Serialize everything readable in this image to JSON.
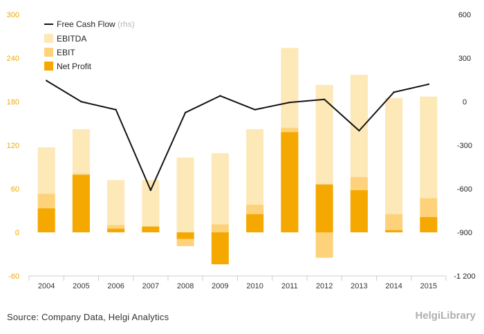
{
  "chart_data": {
    "type": "bar",
    "categories": [
      "2004",
      "2005",
      "2006",
      "2007",
      "2008",
      "2009",
      "2010",
      "2011",
      "2012",
      "2013",
      "2014",
      "2015"
    ],
    "series": [
      {
        "name": "EBITDA",
        "type": "bar",
        "axis": "left",
        "color": "#fde8b8",
        "values": [
          117,
          142,
          72,
          72,
          103,
          109,
          142,
          254,
          203,
          217,
          185,
          187
        ]
      },
      {
        "name": "EBIT",
        "type": "bar",
        "axis": "left",
        "color": "#fdd27a",
        "values": [
          53,
          81,
          10,
          7,
          -19,
          11,
          38,
          144,
          -35,
          76,
          25,
          47
        ]
      },
      {
        "name": "Net Profit",
        "type": "bar",
        "axis": "left",
        "color": "#f5a800",
        "values": [
          33,
          79,
          5,
          8,
          -9,
          -44,
          25,
          138,
          66,
          58,
          3,
          21
        ]
      },
      {
        "name": "Free Cash Flow",
        "type": "line",
        "axis": "right",
        "color": "#111111",
        "values": [
          145,
          0,
          -55,
          -610,
          -75,
          40,
          -55,
          -5,
          15,
          -200,
          65,
          120
        ]
      }
    ],
    "legend_rhs_note": "(rhs)",
    "left_axis": {
      "min": -60,
      "max": 300,
      "ticks": [
        "-60",
        "0",
        "60",
        "120",
        "180",
        "240",
        "300"
      ]
    },
    "right_axis": {
      "min": -1200,
      "max": 600,
      "ticks": [
        "-1 200",
        "-900",
        "-600",
        "-300",
        "0",
        "300",
        "600"
      ]
    },
    "grid": false,
    "legend_position": "top-left",
    "title": "",
    "xlabel": "",
    "ylabel": ""
  },
  "footer": {
    "source": "Source: Company Data, Helgi Analytics",
    "brand": "HelgiLibrary"
  }
}
